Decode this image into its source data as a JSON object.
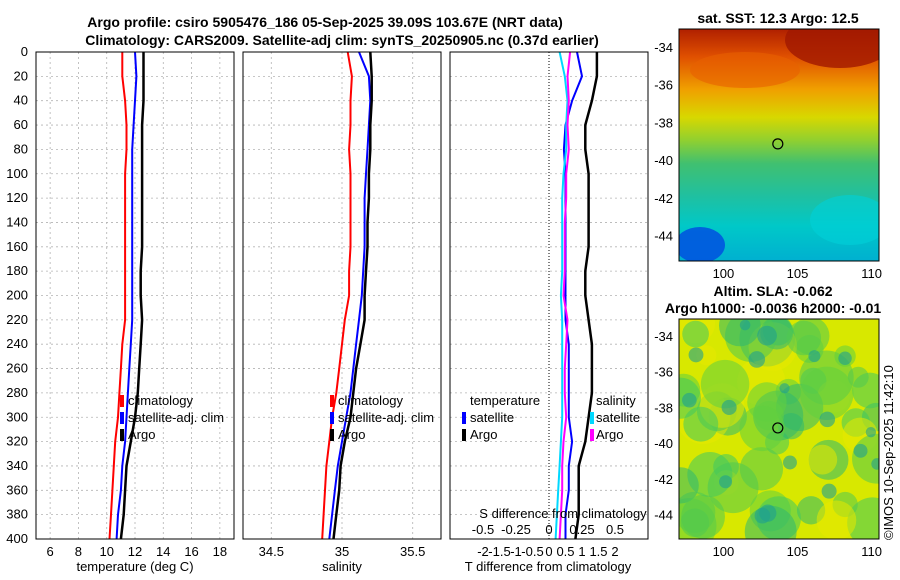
{
  "header": {
    "line1": "Argo profile: csiro 5905476_186 05-Sep-2025 39.09S 103.67E (NRT data)",
    "line2": "Climatology: CARS2009. Satellite-adj clim: synTS_20250905.nc (0.37d earlier)"
  },
  "colors": {
    "climatology": "#ff0000",
    "satellite": "#0000ff",
    "argo": "#000000",
    "salinity_diff": "#ff00ff",
    "temperature_diff": "#00d8ff"
  },
  "depth_axis": {
    "ylim": [
      0,
      400
    ],
    "ticks": [
      "0",
      "20",
      "40",
      "60",
      "80",
      "100",
      "120",
      "140",
      "160",
      "180",
      "200",
      "220",
      "240",
      "260",
      "280",
      "300",
      "320",
      "340",
      "360",
      "380",
      "400"
    ]
  },
  "chart_data": [
    {
      "id": "temperature",
      "type": "line",
      "xlabel": "temperature (deg C)",
      "xlim": [
        5,
        19
      ],
      "xticks": [
        "6",
        "8",
        "10",
        "12",
        "14",
        "16",
        "18"
      ],
      "legend": [
        "climatology",
        "satellite-adj. clim",
        "Argo"
      ],
      "depth": [
        0,
        20,
        40,
        60,
        80,
        100,
        120,
        140,
        160,
        180,
        200,
        220,
        240,
        260,
        280,
        300,
        320,
        340,
        360,
        380,
        400
      ],
      "series": [
        {
          "name": "climatology",
          "color_key": "climatology",
          "values": [
            11.1,
            11.1,
            11.3,
            11.4,
            11.4,
            11.3,
            11.3,
            11.3,
            11.3,
            11.3,
            11.3,
            11.3,
            11.1,
            11.0,
            10.9,
            10.8,
            10.6,
            10.5,
            10.4,
            10.3,
            10.2
          ]
        },
        {
          "name": "satellite-adj. clim",
          "color_key": "satellite",
          "values": [
            12.0,
            12.1,
            12.0,
            11.9,
            11.8,
            11.8,
            11.8,
            11.8,
            11.8,
            11.8,
            11.8,
            11.8,
            11.7,
            11.6,
            11.5,
            11.4,
            11.3,
            11.1,
            11.0,
            10.8,
            10.7
          ]
        },
        {
          "name": "Argo",
          "color_key": "argo",
          "values": [
            12.6,
            12.6,
            12.6,
            12.5,
            12.5,
            12.5,
            12.5,
            12.5,
            12.5,
            12.4,
            12.4,
            12.5,
            12.4,
            12.3,
            12.2,
            12.0,
            11.7,
            11.4,
            11.3,
            11.2,
            11.0
          ]
        }
      ]
    },
    {
      "id": "salinity",
      "type": "line",
      "xlabel": "salinity",
      "xlim": [
        34.3,
        35.7
      ],
      "xticks": [
        "34.5",
        "35",
        "35.5"
      ],
      "legend": [
        "climatology",
        "satellite-adj. clim",
        "Argo"
      ],
      "depth": [
        0,
        20,
        40,
        60,
        80,
        100,
        120,
        140,
        160,
        180,
        200,
        220,
        240,
        260,
        280,
        300,
        320,
        340,
        360,
        380,
        400
      ],
      "series": [
        {
          "name": "climatology",
          "color_key": "climatology",
          "values": [
            35.04,
            35.07,
            35.06,
            35.06,
            35.05,
            35.06,
            35.06,
            35.06,
            35.06,
            35.05,
            35.05,
            35.02,
            35.0,
            34.98,
            34.96,
            34.93,
            34.91,
            34.89,
            34.88,
            34.87,
            34.86
          ]
        },
        {
          "name": "satellite-adj. clim",
          "color_key": "satellite",
          "values": [
            35.12,
            35.19,
            35.2,
            35.19,
            35.18,
            35.17,
            35.16,
            35.16,
            35.16,
            35.15,
            35.14,
            35.12,
            35.1,
            35.08,
            35.06,
            35.03,
            35.0,
            34.97,
            34.95,
            34.93,
            34.91
          ]
        },
        {
          "name": "Argo",
          "color_key": "argo",
          "values": [
            35.2,
            35.21,
            35.21,
            35.2,
            35.2,
            35.19,
            35.19,
            35.18,
            35.18,
            35.17,
            35.16,
            35.16,
            35.13,
            35.1,
            35.08,
            35.06,
            35.02,
            34.99,
            34.98,
            34.96,
            34.94
          ]
        }
      ]
    },
    {
      "id": "difference",
      "type": "line",
      "xlabel": "T difference from climatology",
      "xlabel_top": "S difference from climatology",
      "xlim": [
        -3,
        3
      ],
      "xticks": [
        "-2",
        "-1.5",
        "-1",
        "-0.5",
        "0",
        "0.5",
        "1",
        "1.5",
        "2"
      ],
      "xticks_top": [
        "-0.5",
        "-0.25",
        "0",
        "0.25",
        "0.5"
      ],
      "legend_left_title": "temperature",
      "legend_left": [
        "satellite",
        "Argo"
      ],
      "legend_right_title": "salinity",
      "legend_right": [
        "satellite",
        "Argo"
      ],
      "depth": [
        0,
        20,
        40,
        60,
        80,
        100,
        120,
        140,
        160,
        180,
        200,
        220,
        240,
        260,
        280,
        300,
        320,
        340,
        360,
        380,
        400
      ],
      "series": [
        {
          "name": "temperature satellite",
          "color_key": "satellite",
          "values": [
            0.85,
            1.0,
            0.7,
            0.5,
            0.45,
            0.5,
            0.5,
            0.5,
            0.5,
            0.5,
            0.5,
            0.5,
            0.6,
            0.6,
            0.6,
            0.6,
            0.7,
            0.6,
            0.6,
            0.5,
            0.5
          ]
        },
        {
          "name": "temperature Argo",
          "color_key": "argo",
          "values": [
            1.45,
            1.45,
            1.3,
            1.1,
            1.1,
            1.2,
            1.2,
            1.2,
            1.2,
            1.1,
            1.1,
            1.2,
            1.3,
            1.3,
            1.3,
            1.2,
            1.1,
            0.9,
            0.9,
            0.9,
            0.8
          ]
        },
        {
          "name": "salinity satellite",
          "color_key": "temperature_diff",
          "values": [
            0.08,
            0.12,
            0.14,
            0.13,
            0.13,
            0.11,
            0.1,
            0.1,
            0.1,
            0.1,
            0.09,
            0.1,
            0.1,
            0.1,
            0.1,
            0.1,
            0.09,
            0.08,
            0.07,
            0.06,
            0.05
          ]
        },
        {
          "name": "salinity Argo",
          "color_key": "salinity_diff",
          "values": [
            0.16,
            0.14,
            0.15,
            0.14,
            0.15,
            0.13,
            0.13,
            0.12,
            0.12,
            0.12,
            0.11,
            0.14,
            0.13,
            0.12,
            0.12,
            0.13,
            0.11,
            0.1,
            0.1,
            0.09,
            0.08
          ]
        }
      ]
    }
  ],
  "maps": {
    "sst": {
      "title": "sat. SST: 12.3 Argo: 12.5",
      "xticks": [
        "100",
        "105",
        "110"
      ],
      "yticks": [
        "-34",
        "-36",
        "-38",
        "-40",
        "-42",
        "-44"
      ],
      "lon_range": [
        97,
        110.5
      ],
      "lat_range": [
        -45.3,
        -33
      ],
      "argo_position": {
        "lon": 103.67,
        "lat": -39.09
      }
    },
    "sla": {
      "title_line1": "Altim. SLA: -0.062",
      "title_line2": "Argo h1000: -0.0036 h2000: -0.01",
      "xticks": [
        "100",
        "105",
        "110"
      ],
      "yticks": [
        "-34",
        "-36",
        "-38",
        "-40",
        "-42",
        "-44"
      ],
      "lon_range": [
        97,
        110.5
      ],
      "lat_range": [
        -45.3,
        -33
      ],
      "argo_position": {
        "lon": 103.67,
        "lat": -39.09
      }
    }
  },
  "footer": {
    "credit": "©IMOS 10-Sep-2025 11:42:10"
  }
}
